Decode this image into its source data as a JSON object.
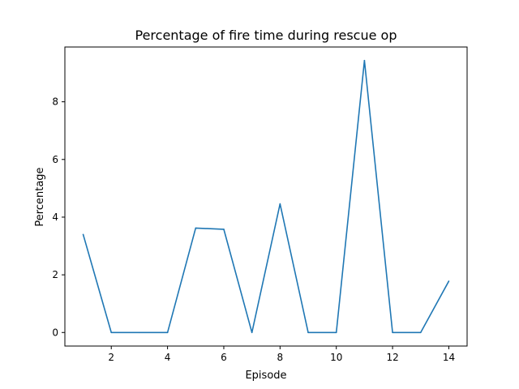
{
  "chart_data": {
    "type": "line",
    "title": "Percentage of fire time during rescue op",
    "xlabel": "Episode",
    "ylabel": "Percentage",
    "xlim": [
      0.35,
      14.65
    ],
    "ylim": [
      -0.47,
      9.9
    ],
    "xticks": [
      2,
      4,
      6,
      8,
      10,
      12,
      14
    ],
    "yticks": [
      0,
      2,
      4,
      6,
      8
    ],
    "grid": false,
    "series": [
      {
        "color": "#1f77b4",
        "x": [
          1,
          2,
          3,
          4,
          5,
          6,
          7,
          8,
          9,
          10,
          11,
          12,
          13,
          14
        ],
        "y": [
          3.4,
          0,
          0,
          0,
          3.62,
          3.58,
          0,
          4.46,
          0,
          0,
          9.43,
          0,
          0,
          1.78
        ]
      }
    ]
  }
}
